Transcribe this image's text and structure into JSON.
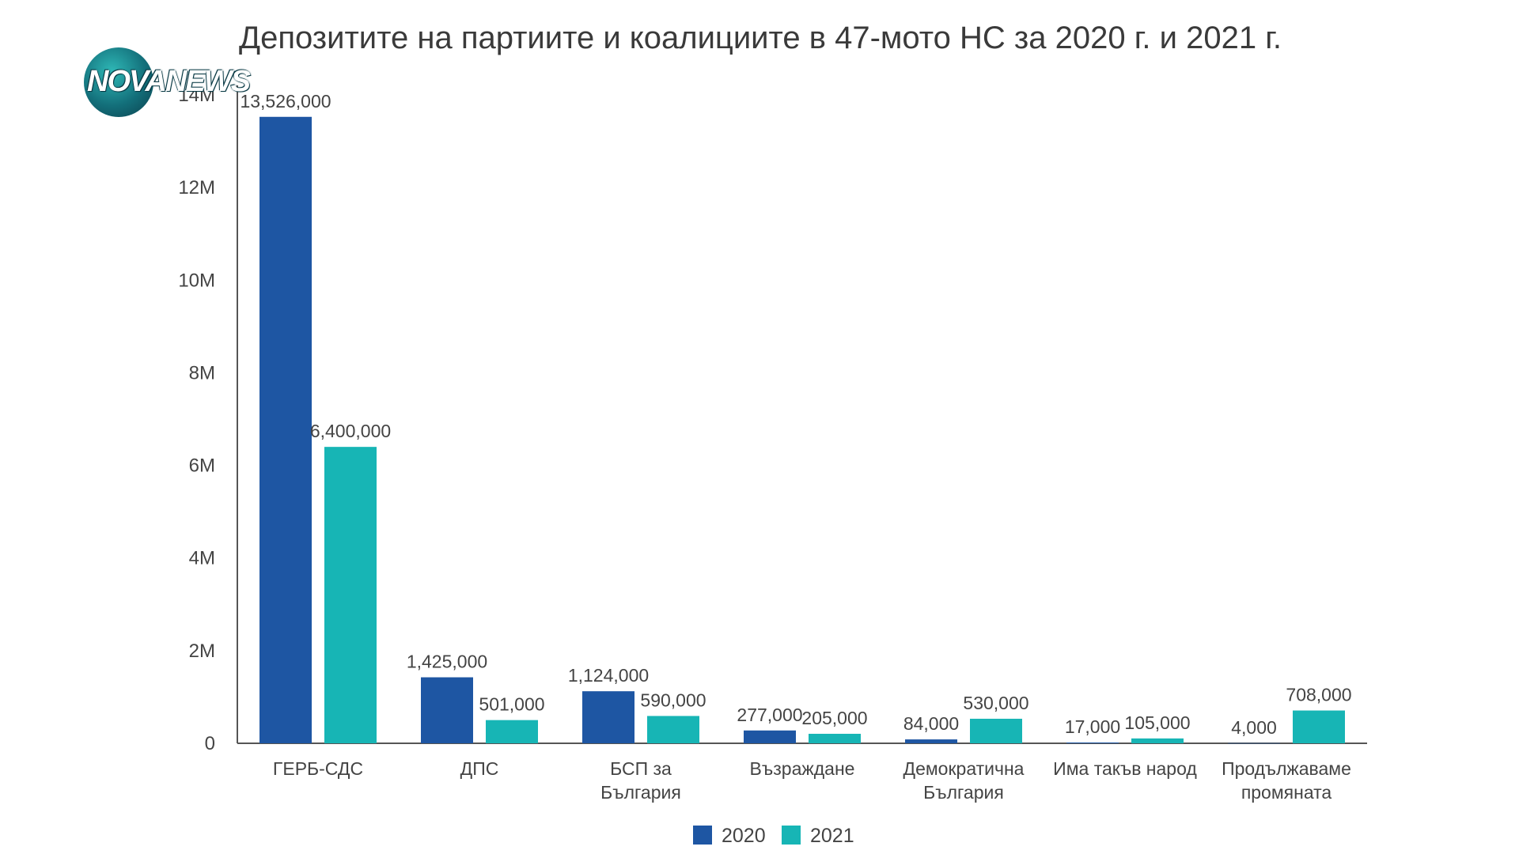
{
  "title": "Депозитите на партиите и коалициите в 47-мото НС за 2020 г. и 2021 г.",
  "logo_text": "NOVANEWS",
  "colors": {
    "2020": "#1e56a3",
    "2021": "#17b5b5",
    "axis": "#555555",
    "text": "#444444"
  },
  "chart_data": {
    "type": "bar",
    "title": "Депозитите на партиите и коалициите в 47-мото НС за 2020 г. и 2021 г.",
    "categories": [
      [
        "ГЕРБ-СДС"
      ],
      [
        "ДПС"
      ],
      [
        "БСП за",
        "България"
      ],
      [
        "Възраждане"
      ],
      [
        "Демократична",
        "България"
      ],
      [
        "Има такъв народ"
      ],
      [
        "Продължаваме",
        "промяната"
      ]
    ],
    "series": [
      {
        "name": "2020",
        "values": [
          13526000,
          1425000,
          1124000,
          277000,
          84000,
          17000,
          4000
        ],
        "labels": [
          "13,526,000",
          "1,425,000",
          "1,124,000",
          "277,000",
          "84,000",
          "17,000",
          "4,000"
        ]
      },
      {
        "name": "2021",
        "values": [
          6400000,
          501000,
          590000,
          205000,
          530000,
          105000,
          708000
        ],
        "labels": [
          "6,400,000",
          "501,000",
          "590,000",
          "205,000",
          "530,000",
          "105,000",
          "708,000"
        ]
      }
    ],
    "ylim": [
      0,
      14000000
    ],
    "yticks": [
      0,
      2000000,
      4000000,
      6000000,
      8000000,
      10000000,
      12000000,
      14000000
    ],
    "ytick_labels": [
      "0",
      "2M",
      "4M",
      "6M",
      "8M",
      "10M",
      "12M",
      "14M"
    ],
    "legend": "bottom",
    "grid": false
  }
}
